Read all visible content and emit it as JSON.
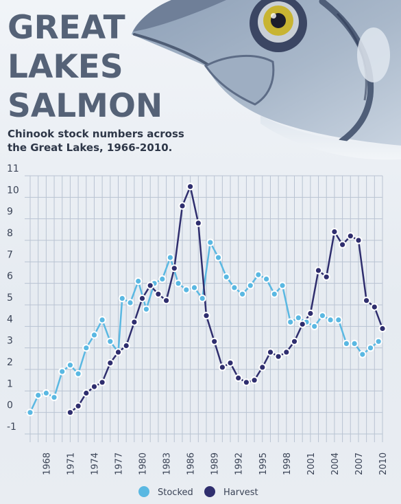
{
  "header": {
    "title_lines": [
      "GREAT",
      "LAKES",
      "SALMON"
    ],
    "subtitle": "Chinook stock numbers across the Great Lakes, 1966-2010."
  },
  "colors": {
    "stocked": "#5ab8e2",
    "harvest": "#2f2e6e",
    "grid": "#b9c3d2",
    "tick_text": "#3a4356"
  },
  "chart_data": {
    "type": "line",
    "title": "Chinook stock numbers across the Great Lakes, 1966-2010.",
    "xlabel": "",
    "ylabel": "",
    "xlim": [
      1966,
      2010
    ],
    "ylim": [
      -1,
      11
    ],
    "x_ticks": [
      1968,
      1971,
      1974,
      1977,
      1980,
      1983,
      1986,
      1989,
      1992,
      1995,
      1998,
      2001,
      2004,
      2007,
      2010
    ],
    "y_ticks": [
      -1,
      0,
      1,
      2,
      3,
      4,
      5,
      6,
      7,
      8,
      9,
      10,
      11
    ],
    "grid": true,
    "legend_position": "bottom-center",
    "series": [
      {
        "name": "Stocked",
        "points": [
          [
            1966,
            0.0
          ],
          [
            1967,
            0.8
          ],
          [
            1968,
            0.9
          ],
          [
            1969,
            0.7
          ],
          [
            1970,
            1.9
          ],
          [
            1971,
            2.2
          ],
          [
            1972,
            1.8
          ],
          [
            1973,
            3.0
          ],
          [
            1974,
            3.6
          ],
          [
            1975,
            4.3
          ],
          [
            1976,
            3.3
          ],
          [
            1977,
            2.8
          ],
          [
            1977.5,
            5.3
          ],
          [
            1978.5,
            5.1
          ],
          [
            1979.5,
            6.1
          ],
          [
            1980.5,
            4.8
          ],
          [
            1981.5,
            6.0
          ],
          [
            1982.5,
            6.2
          ],
          [
            1983.5,
            7.2
          ],
          [
            1984.5,
            6.0
          ],
          [
            1985.5,
            5.7
          ],
          [
            1986.5,
            5.8
          ],
          [
            1987.5,
            5.3
          ],
          [
            1988.5,
            7.9
          ],
          [
            1989.5,
            7.2
          ],
          [
            1990.5,
            6.3
          ],
          [
            1991.5,
            5.8
          ],
          [
            1992.5,
            5.5
          ],
          [
            1993.5,
            5.9
          ],
          [
            1994.5,
            6.4
          ],
          [
            1995.5,
            6.2
          ],
          [
            1996.5,
            5.5
          ],
          [
            1997.5,
            5.9
          ],
          [
            1998.5,
            4.2
          ],
          [
            1999.5,
            4.4
          ],
          [
            2000.5,
            4.2
          ],
          [
            2001.5,
            4.0
          ],
          [
            2002.5,
            4.5
          ],
          [
            2003.5,
            4.3
          ],
          [
            2004.5,
            4.3
          ],
          [
            2005.5,
            3.2
          ],
          [
            2006.5,
            3.2
          ],
          [
            2007.5,
            2.7
          ],
          [
            2008.5,
            3.0
          ],
          [
            2009.5,
            3.3
          ]
        ]
      },
      {
        "name": "Harvest",
        "points": [
          [
            1971,
            0.0
          ],
          [
            1972,
            0.3
          ],
          [
            1973,
            0.9
          ],
          [
            1974,
            1.2
          ],
          [
            1975,
            1.4
          ],
          [
            1976,
            2.3
          ],
          [
            1977,
            2.8
          ],
          [
            1978,
            3.1
          ],
          [
            1979,
            4.2
          ],
          [
            1980,
            5.3
          ],
          [
            1981,
            5.9
          ],
          [
            1982,
            5.5
          ],
          [
            1983,
            5.2
          ],
          [
            1984,
            6.7
          ],
          [
            1985,
            9.6
          ],
          [
            1986,
            10.5
          ],
          [
            1987,
            8.8
          ],
          [
            1988,
            4.5
          ],
          [
            1989,
            3.3
          ],
          [
            1990,
            2.1
          ],
          [
            1991,
            2.3
          ],
          [
            1992,
            1.6
          ],
          [
            1993,
            1.4
          ],
          [
            1994,
            1.5
          ],
          [
            1995,
            2.1
          ],
          [
            1996,
            2.8
          ],
          [
            1997,
            2.6
          ],
          [
            1998,
            2.8
          ],
          [
            1999,
            3.3
          ],
          [
            2000,
            4.1
          ],
          [
            2001,
            4.6
          ],
          [
            2002,
            6.6
          ],
          [
            2003,
            6.3
          ],
          [
            2004,
            8.4
          ],
          [
            2005,
            7.8
          ],
          [
            2006,
            8.2
          ],
          [
            2007,
            8.0
          ],
          [
            2008,
            5.2
          ],
          [
            2009,
            4.9
          ],
          [
            2010,
            3.9
          ]
        ]
      }
    ]
  }
}
